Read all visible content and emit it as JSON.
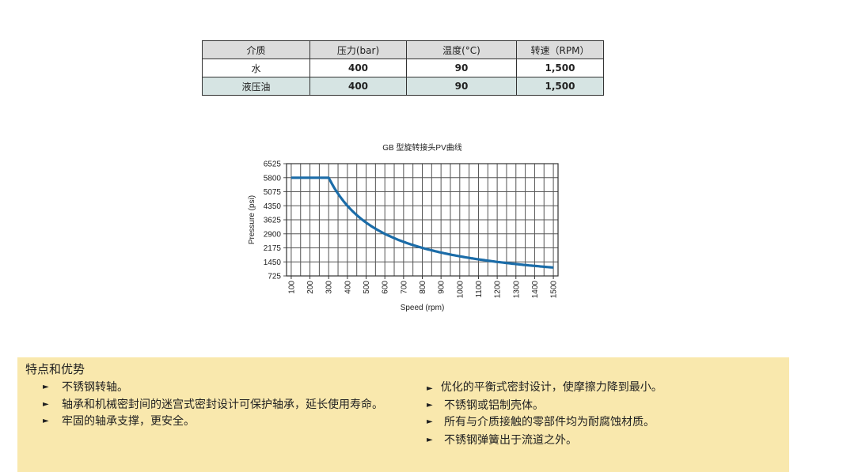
{
  "table": {
    "headers": [
      "介质",
      "压力(bar)",
      "温度(°C)",
      "转速（RPM）"
    ],
    "rows": [
      [
        "水",
        "400",
        "90",
        "1,500"
      ],
      [
        "液压油",
        "400",
        "90",
        "1,500"
      ]
    ]
  },
  "chart_data": {
    "type": "line",
    "title": "GB 型旋转接头PV曲线",
    "xlabel": "Speed (rpm)",
    "ylabel": "Pressure (psi)",
    "x_ticks": [
      "100",
      "200",
      "300",
      "400",
      "500",
      "600",
      "700",
      "800",
      "900",
      "1000",
      "1100",
      "1200",
      "1300",
      "1400",
      "1500"
    ],
    "y_ticks": [
      "6525",
      "5800",
      "5075",
      "4350",
      "3625",
      "2900",
      "2175",
      "1450",
      "725"
    ],
    "xlim": [
      75,
      1525
    ],
    "ylim": [
      725,
      6525
    ],
    "grid": true,
    "line_color": "#1b6ca8",
    "x": [
      100,
      200,
      300,
      400,
      500,
      600,
      700,
      800,
      900,
      1000,
      1100,
      1200,
      1300,
      1400,
      1500
    ],
    "y": [
      5800,
      5800,
      5800,
      4350,
      3480,
      2900,
      2486,
      2175,
      1933,
      1740,
      1582,
      1450,
      1338,
      1243,
      1160
    ]
  },
  "features": {
    "title": "特点和优势",
    "bullet_icon": "triangle-right",
    "left": [
      "不锈钢转轴。",
      "轴承和机械密封间的迷宫式密封设计可保护轴承，延长使用寿命。",
      "牢固的轴承支撑，更安全。"
    ],
    "right": [
      "优化的平衡式密封设计，使摩擦力降到最小。",
      "不锈钢或铝制壳体。",
      "所有与介质接触的零部件均为耐腐蚀材质。",
      "不锈钢弹簧出于流道之外。"
    ],
    "background": "#f9e8ad"
  }
}
